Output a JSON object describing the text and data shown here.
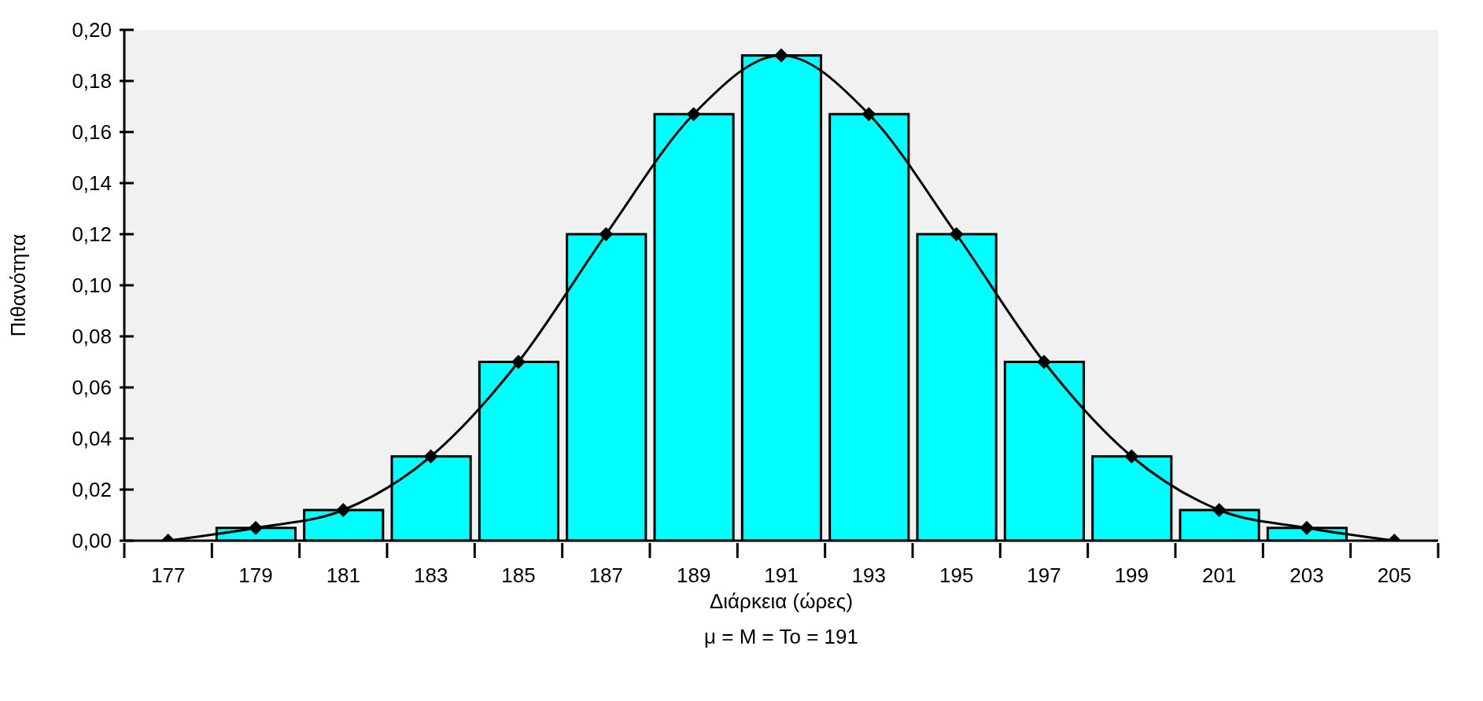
{
  "chart_data": {
    "type": "histogram",
    "xlabel": "Διάρκεια (ώρες)",
    "ylabel": "Πιθανότητα",
    "annotations": [
      "μ = M = To = 191"
    ],
    "series": [
      {
        "type": "histogram",
        "color": "#00ffff",
        "bins": [
          178,
          180,
          182,
          184,
          186,
          188,
          190,
          192,
          194,
          196,
          198,
          200,
          202,
          204
        ],
        "values": [
          0.005,
          0.012,
          0.033,
          0.07,
          0.12,
          0.167,
          0.19,
          0.167,
          0.12,
          0.07,
          0.033,
          0.012,
          0.005
        ]
      },
      {
        "type": "line",
        "color": "#000000",
        "marker": "diamond",
        "x": [
          177,
          179,
          181,
          183,
          185,
          187,
          189,
          191,
          193,
          195,
          197,
          199,
          201,
          203,
          205
        ],
        "values": [
          0,
          0.005,
          0.012,
          0.033,
          0.07,
          0.12,
          0.167,
          0.19,
          0.167,
          0.12,
          0.07,
          0.033,
          0.012,
          0.005,
          0
        ]
      }
    ],
    "xlim": [
      176,
      206
    ],
    "xticks": [
      {
        "value": 176,
        "label": null
      },
      {
        "value": 177,
        "label": "177"
      },
      {
        "value": 179,
        "label": "179"
      },
      {
        "value": 181,
        "label": "181"
      },
      {
        "value": 183,
        "label": "183"
      },
      {
        "value": 185,
        "label": "185"
      },
      {
        "value": 187,
        "label": "187"
      },
      {
        "value": 189,
        "label": "189"
      },
      {
        "value": 191,
        "label": "191"
      },
      {
        "value": 193,
        "label": "193"
      },
      {
        "value": 195,
        "label": "195"
      },
      {
        "value": 197,
        "label": "197"
      },
      {
        "value": 199,
        "label": "199"
      },
      {
        "value": 201,
        "label": "201"
      },
      {
        "value": 203,
        "label": "203"
      },
      {
        "value": 205,
        "label": "205"
      },
      {
        "value": 206,
        "label": null
      }
    ],
    "ylim": [
      0,
      0.2
    ],
    "yticks": [
      {
        "value": 0,
        "label": "0,00"
      },
      {
        "value": 0.02,
        "label": "0,02"
      },
      {
        "value": 0.04,
        "label": "0,04"
      },
      {
        "value": 0.06,
        "label": "0,06"
      },
      {
        "value": 0.08,
        "label": "0,08"
      },
      {
        "value": 0.1,
        "label": "0,10"
      },
      {
        "value": 0.12,
        "label": "0,12"
      },
      {
        "value": 0.14,
        "label": "0,14"
      },
      {
        "value": 0.16,
        "label": "0,16"
      },
      {
        "value": 0.18,
        "label": "0,18"
      },
      {
        "value": 0.2,
        "label": "0,20"
      }
    ],
    "grid": false,
    "legend": false
  }
}
